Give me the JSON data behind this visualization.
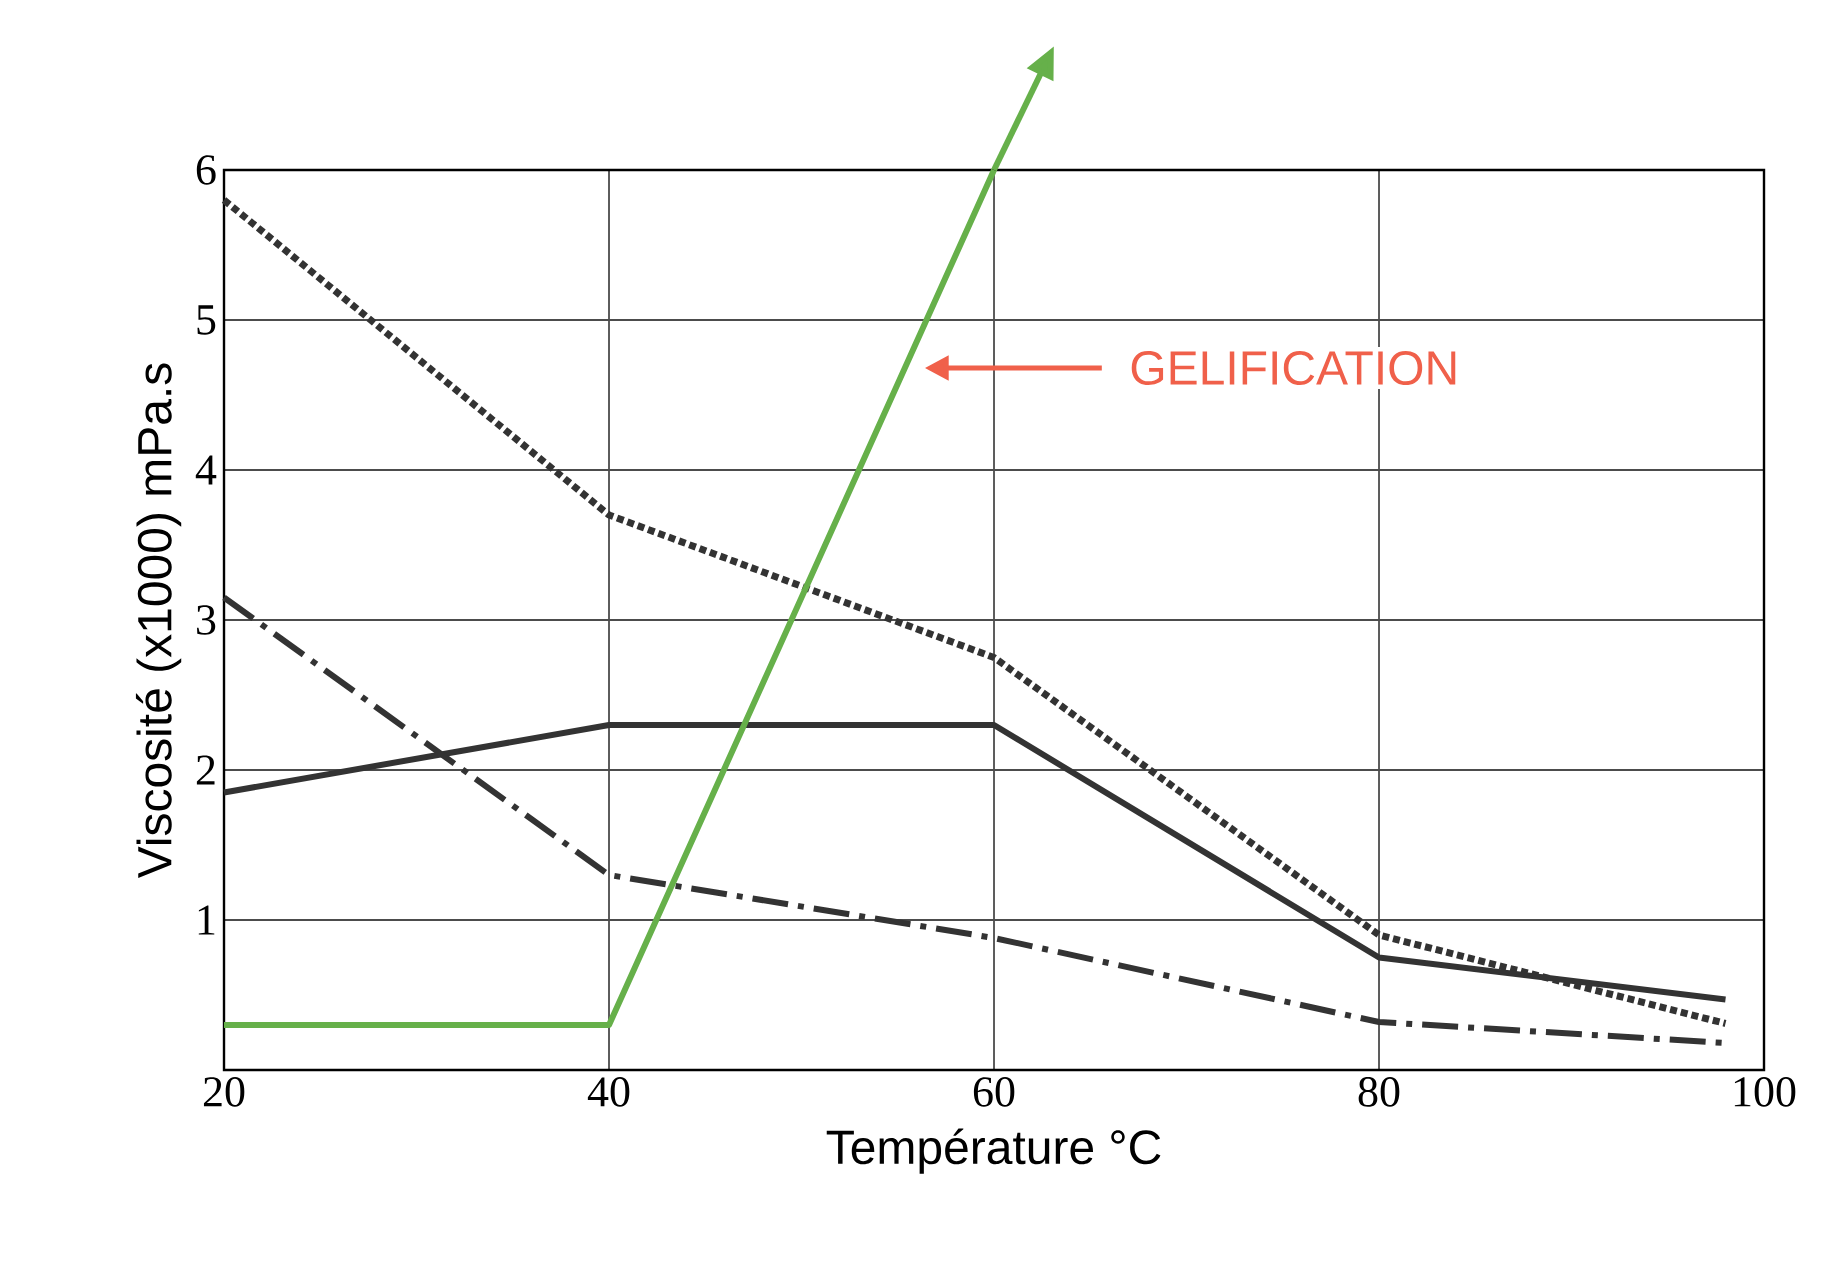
{
  "chart_data": {
    "type": "line",
    "xlabel": "Température °C",
    "ylabel": "Viscosité (x1000) mPa.s",
    "xlim": [
      20,
      100
    ],
    "ylim": [
      0,
      6
    ],
    "xticks": [
      20,
      40,
      60,
      80,
      100
    ],
    "yticks": [
      1,
      2,
      3,
      4,
      5,
      6
    ],
    "grid": true,
    "series": [
      {
        "color": "#333333",
        "line_style": "dotted",
        "x": [
          20,
          40,
          60,
          80,
          98
        ],
        "values": [
          5.8,
          3.7,
          2.75,
          0.9,
          0.31
        ]
      },
      {
        "color": "#333333",
        "line_style": "solid",
        "x": [
          20,
          40,
          60,
          80,
          98
        ],
        "values": [
          1.85,
          2.3,
          2.3,
          0.75,
          0.47
        ]
      },
      {
        "color": "#333333",
        "line_style": "dashdot",
        "x": [
          20,
          40,
          60,
          80,
          98
        ],
        "values": [
          3.15,
          1.3,
          0.88,
          0.32,
          0.18
        ]
      },
      {
        "color": "#66b04a",
        "line_style": "solid",
        "x": [
          20,
          40,
          60
        ],
        "values": [
          0.3,
          0.3,
          6.0
        ]
      }
    ],
    "annotations": [
      "GELIFICATION"
    ]
  }
}
